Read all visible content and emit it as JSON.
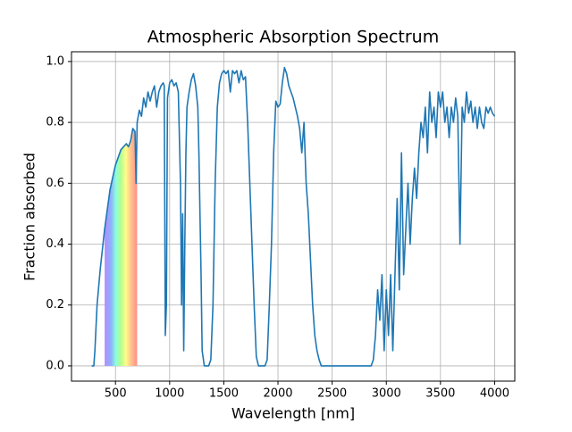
{
  "chart_data": {
    "type": "line",
    "title": "Atmospheric Absorption Spectrum",
    "x_label": "Wavelength [nm]",
    "y_label": "Fraction absorbed",
    "x": [
      280,
      300,
      310,
      330,
      360,
      400,
      450,
      500,
      550,
      600,
      620,
      640,
      660,
      680,
      690,
      700,
      720,
      740,
      760,
      780,
      800,
      820,
      840,
      860,
      880,
      900,
      920,
      940,
      950,
      960,
      970,
      980,
      1000,
      1020,
      1040,
      1060,
      1080,
      1100,
      1110,
      1120,
      1130,
      1140,
      1150,
      1160,
      1180,
      1200,
      1220,
      1240,
      1260,
      1270,
      1290,
      1300,
      1320,
      1340,
      1360,
      1380,
      1400,
      1420,
      1440,
      1460,
      1480,
      1500,
      1520,
      1540,
      1560,
      1580,
      1600,
      1620,
      1640,
      1660,
      1680,
      1700,
      1720,
      1740,
      1760,
      1780,
      1800,
      1820,
      1840,
      1860,
      1880,
      1900,
      1920,
      1940,
      1960,
      1980,
      2000,
      2020,
      2040,
      2060,
      2080,
      2100,
      2120,
      2140,
      2160,
      2180,
      2200,
      2220,
      2240,
      2260,
      2280,
      2300,
      2320,
      2340,
      2360,
      2380,
      2400,
      2420,
      2500,
      2600,
      2700,
      2800,
      2860,
      2880,
      2900,
      2920,
      2940,
      2960,
      2980,
      3000,
      3020,
      3040,
      3060,
      3080,
      3100,
      3120,
      3140,
      3160,
      3180,
      3200,
      3220,
      3240,
      3260,
      3280,
      3300,
      3320,
      3340,
      3360,
      3380,
      3400,
      3420,
      3440,
      3460,
      3480,
      3500,
      3520,
      3540,
      3560,
      3580,
      3600,
      3620,
      3640,
      3660,
      3680,
      3700,
      3720,
      3740,
      3760,
      3780,
      3800,
      3820,
      3840,
      3860,
      3880,
      3900,
      3920,
      3940,
      3960,
      3980,
      4000
    ],
    "series": [
      {
        "color": "#1f77b4",
        "values": [
          0,
          0,
          0.05,
          0.2,
          0.32,
          0.45,
          0.58,
          0.66,
          0.71,
          0.73,
          0.72,
          0.74,
          0.78,
          0.77,
          0.6,
          0.8,
          0.84,
          0.82,
          0.88,
          0.85,
          0.9,
          0.87,
          0.9,
          0.92,
          0.85,
          0.9,
          0.92,
          0.93,
          0.92,
          0.1,
          0.2,
          0.88,
          0.93,
          0.94,
          0.92,
          0.93,
          0.9,
          0.6,
          0.2,
          0.5,
          0.05,
          0.4,
          0.7,
          0.85,
          0.9,
          0.94,
          0.96,
          0.92,
          0.85,
          0.7,
          0.3,
          0.05,
          0,
          0,
          0,
          0.02,
          0.2,
          0.6,
          0.85,
          0.93,
          0.96,
          0.97,
          0.96,
          0.97,
          0.9,
          0.97,
          0.96,
          0.97,
          0.93,
          0.97,
          0.94,
          0.95,
          0.8,
          0.6,
          0.4,
          0.2,
          0.03,
          0,
          0,
          0,
          0,
          0.02,
          0.2,
          0.4,
          0.7,
          0.87,
          0.85,
          0.86,
          0.93,
          0.98,
          0.96,
          0.92,
          0.9,
          0.88,
          0.85,
          0.82,
          0.78,
          0.7,
          0.8,
          0.6,
          0.5,
          0.35,
          0.2,
          0.1,
          0.05,
          0.02,
          0,
          0,
          0,
          0,
          0,
          0,
          0,
          0.02,
          0.1,
          0.25,
          0.15,
          0.3,
          0.05,
          0.25,
          0.1,
          0.3,
          0.05,
          0.3,
          0.55,
          0.25,
          0.7,
          0.3,
          0.45,
          0.6,
          0.4,
          0.55,
          0.65,
          0.55,
          0.7,
          0.8,
          0.75,
          0.85,
          0.7,
          0.9,
          0.8,
          0.85,
          0.75,
          0.9,
          0.85,
          0.9,
          0.8,
          0.85,
          0.75,
          0.85,
          0.8,
          0.88,
          0.82,
          0.4,
          0.85,
          0.8,
          0.9,
          0.83,
          0.87,
          0.8,
          0.85,
          0.78,
          0.85,
          0.8,
          0.78,
          0.85,
          0.83,
          0.85,
          0.83,
          0.82
        ]
      }
    ],
    "xlim": [
      94,
      4186
    ],
    "ylim": [
      -0.05,
      1.032
    ],
    "xticks": [
      500,
      1000,
      1500,
      2000,
      2500,
      3000,
      3500,
      4000
    ],
    "yticks": [
      {
        "value": 0,
        "label": "0.0"
      },
      {
        "value": 0.2,
        "label": "0.2"
      },
      {
        "value": 0.4,
        "label": "0.4"
      },
      {
        "value": 0.6,
        "label": "0.6"
      },
      {
        "value": 0.8,
        "label": "0.8"
      },
      {
        "value": 1,
        "label": "1.0"
      }
    ],
    "visible_range": [
      400,
      700
    ],
    "grid": true
  }
}
